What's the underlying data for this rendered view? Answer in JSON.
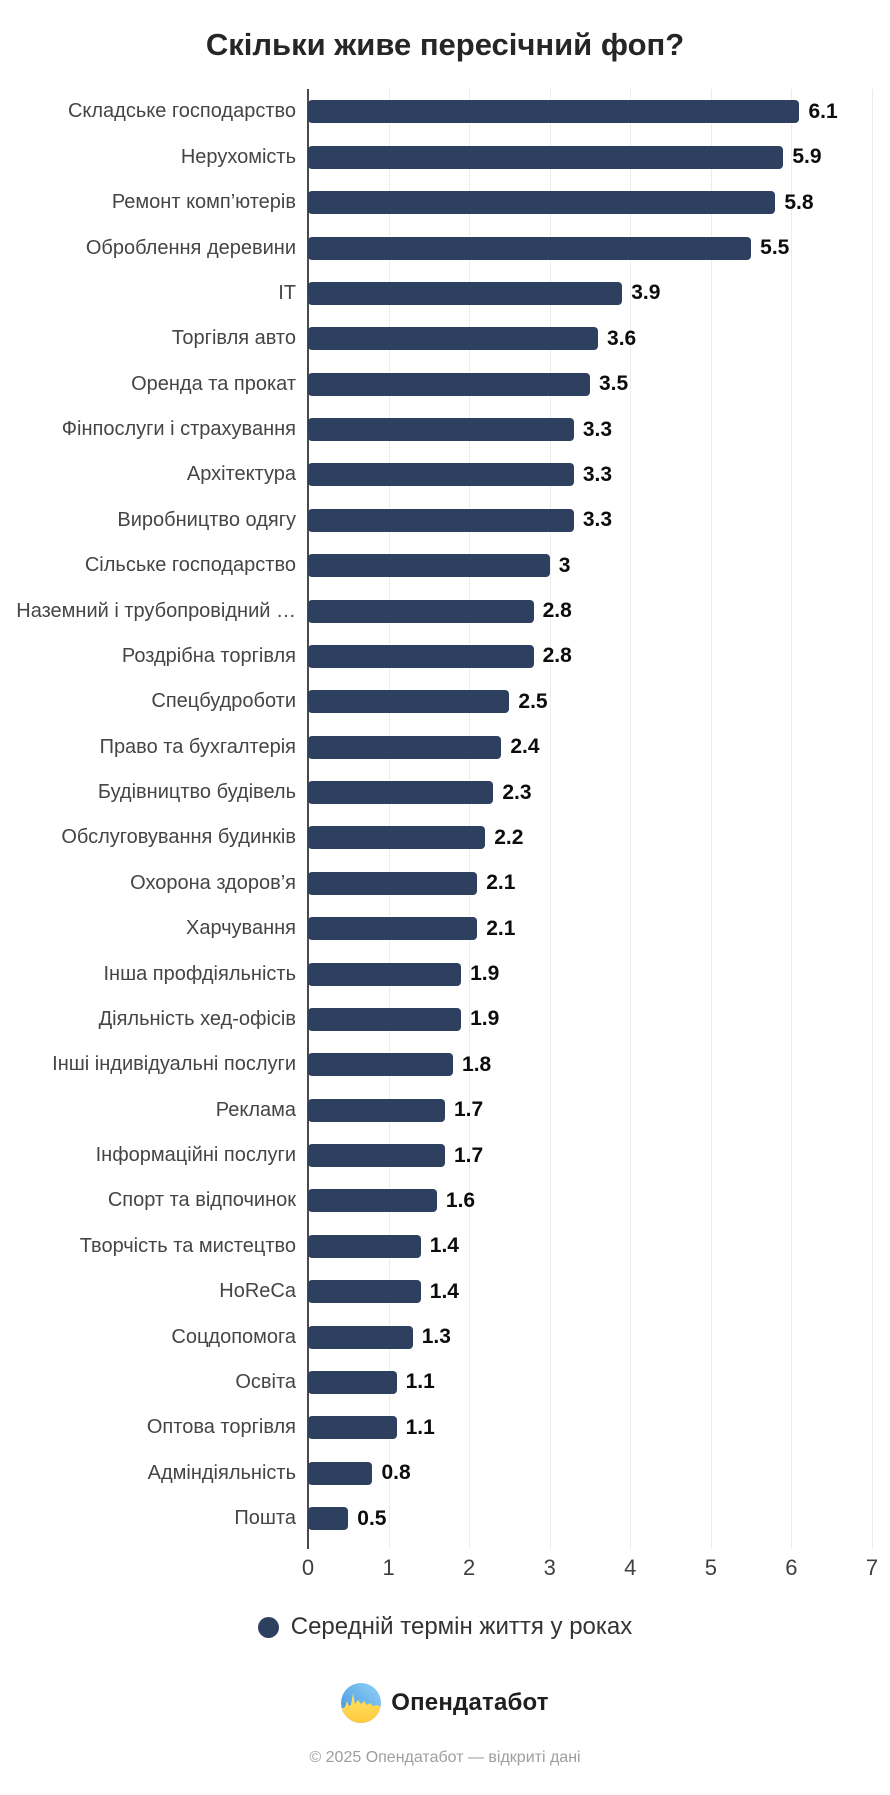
{
  "title": "Скільки живе пересічний фоп?",
  "colors": {
    "bar": "#2e4060",
    "axis_line": "#4a4a4a",
    "gridline": "#ececec",
    "value_label": "#0c0c0c",
    "category_label": "#454545",
    "logo_blue": "#4f9ee2",
    "logo_yellow": "#ffd23e"
  },
  "chart_data": {
    "type": "bar",
    "orientation": "horizontal",
    "title": "Скільки живе пересічний фоп?",
    "xlabel": "",
    "ylabel": "",
    "xlim": [
      0,
      7
    ],
    "x_ticks": [
      0,
      1,
      2,
      3,
      4,
      5,
      6,
      7
    ],
    "grid": "vertical",
    "legend_position": "bottom",
    "bar_color": "#2e4060",
    "categories": [
      "Складське господарство",
      "Нерухомість",
      "Ремонт комп’ютерів",
      "Оброблення деревини",
      "IT",
      "Торгівля авто",
      "Оренда та прокат",
      "Фінпослуги і страхування",
      "Архітектура",
      "Виробництво одягу",
      "Сільське господарство",
      "Наземний і трубопровідний …",
      "Роздрібна торгівля",
      "Спецбудроботи",
      "Право та бухгалтерія",
      "Будівництво будівель",
      "Обслуговування будинків",
      "Охорона здоров’я",
      "Харчування",
      "Інша профдіяльність",
      "Діяльність хед-офісів",
      "Інші індивідуальні послуги",
      "Реклама",
      "Інформаційні послуги",
      "Спорт та відпочинок",
      "Творчість та мистецтво",
      "HoReCa",
      "Соцдопомога",
      "Освіта",
      "Оптова торгівля",
      "Адміндіяльність",
      "Пошта"
    ],
    "values": [
      6.1,
      5.9,
      5.8,
      5.5,
      3.9,
      3.6,
      3.5,
      3.3,
      3.3,
      3.3,
      3,
      2.8,
      2.8,
      2.5,
      2.4,
      2.3,
      2.2,
      2.1,
      2.1,
      1.9,
      1.9,
      1.8,
      1.7,
      1.7,
      1.6,
      1.4,
      1.4,
      1.3,
      1.1,
      1.1,
      0.8,
      0.5
    ],
    "value_labels": [
      "6.1",
      "5.9",
      "5.8",
      "5.5",
      "3.9",
      "3.6",
      "3.5",
      "3.3",
      "3.3",
      "3.3",
      "3",
      "2.8",
      "2.8",
      "2.5",
      "2.4",
      "2.3",
      "2.2",
      "2.1",
      "2.1",
      "1.9",
      "1.9",
      "1.8",
      "1.7",
      "1.7",
      "1.6",
      "1.4",
      "1.4",
      "1.3",
      "1.1",
      "1.1",
      "0.8",
      "0.5"
    ]
  },
  "legend": {
    "label": "Середній термін життя у роках"
  },
  "footer": {
    "brand": "Опендатабот",
    "copyright": "© 2025 Опендатабот — відкриті дані"
  }
}
